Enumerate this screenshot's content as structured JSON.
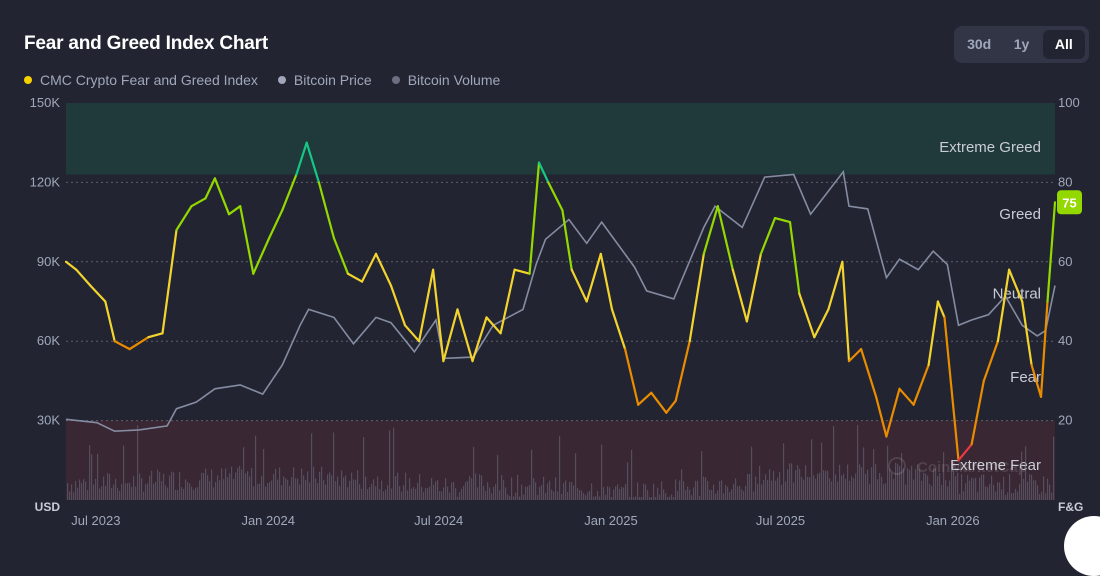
{
  "header": {
    "title": "Fear and Greed Index Chart",
    "ranges": [
      {
        "label": "30d",
        "active": false
      },
      {
        "label": "1y",
        "active": false
      },
      {
        "label": "All",
        "active": true
      }
    ]
  },
  "legend": [
    {
      "label": "CMC Crypto Fear and Greed Index",
      "color": "#f5d100"
    },
    {
      "label": "Bitcoin Price",
      "color": "#a1a7bb"
    },
    {
      "label": "Bitcoin Volume",
      "color": "#6b6f80"
    }
  ],
  "watermark": "CoinMarketCap",
  "chart_data": {
    "type": "line",
    "x_axis": {
      "type": "date",
      "range": [
        "2023-06-29",
        "2026-05-20"
      ],
      "ticks": [
        "Jul 2023",
        "Jan 2024",
        "Jul 2024",
        "Jan 2025",
        "Jul 2025",
        "Jan 2026"
      ]
    },
    "y_left": {
      "label": "USD",
      "range": [
        0,
        150000
      ],
      "ticks": [
        "30K",
        "60K",
        "90K",
        "120K",
        "150K"
      ]
    },
    "y_right": {
      "label": "F&G",
      "range": [
        0,
        100
      ],
      "ticks": [
        "20",
        "40",
        "60",
        "80",
        "100"
      ]
    },
    "zones": [
      {
        "label": "Extreme Greed",
        "from": 82,
        "to": 100,
        "color": "#16c784"
      },
      {
        "label": "Greed",
        "from": 62,
        "to": 82
      },
      {
        "label": "Neutral",
        "from": 42,
        "to": 62
      },
      {
        "label": "Fear",
        "from": 20,
        "to": 42
      },
      {
        "label": "Extreme Fear",
        "from": 0,
        "to": 20,
        "color": "#ea3943"
      }
    ],
    "current_value": "75",
    "series": [
      {
        "name": "CMC Crypto Fear and Greed Index",
        "axis": "right",
        "color_scale": [
          "#ea3943",
          "#ea8c00",
          "#f3d42f",
          "#93d900",
          "#16c784"
        ],
        "points": [
          [
            "2023-06-29",
            60
          ],
          [
            "2023-07-10",
            58
          ],
          [
            "2023-07-25",
            54
          ],
          [
            "2023-08-10",
            50
          ],
          [
            "2023-08-20",
            40
          ],
          [
            "2023-09-05",
            38
          ],
          [
            "2023-09-25",
            41
          ],
          [
            "2023-10-10",
            42
          ],
          [
            "2023-10-25",
            68
          ],
          [
            "2023-11-10",
            74
          ],
          [
            "2023-11-25",
            76
          ],
          [
            "2023-12-05",
            81
          ],
          [
            "2023-12-20",
            72
          ],
          [
            "2024-01-01",
            74
          ],
          [
            "2024-01-15",
            57
          ],
          [
            "2024-02-01",
            66
          ],
          [
            "2024-02-15",
            73
          ],
          [
            "2024-03-01",
            82
          ],
          [
            "2024-03-12",
            90
          ],
          [
            "2024-03-25",
            80
          ],
          [
            "2024-04-10",
            66
          ],
          [
            "2024-04-25",
            57
          ],
          [
            "2024-05-10",
            55
          ],
          [
            "2024-05-25",
            62
          ],
          [
            "2024-06-10",
            54
          ],
          [
            "2024-06-25",
            44
          ],
          [
            "2024-07-10",
            40
          ],
          [
            "2024-07-25",
            58
          ],
          [
            "2024-08-05",
            35
          ],
          [
            "2024-08-20",
            48
          ],
          [
            "2024-09-05",
            35
          ],
          [
            "2024-09-20",
            46
          ],
          [
            "2024-10-05",
            42
          ],
          [
            "2024-10-20",
            58
          ],
          [
            "2024-11-05",
            57
          ],
          [
            "2024-11-15",
            85
          ],
          [
            "2024-11-25",
            80
          ],
          [
            "2024-12-10",
            73
          ],
          [
            "2024-12-20",
            58
          ],
          [
            "2025-01-05",
            50
          ],
          [
            "2025-01-20",
            62
          ],
          [
            "2025-02-01",
            48
          ],
          [
            "2025-02-15",
            38
          ],
          [
            "2025-03-01",
            24
          ],
          [
            "2025-03-15",
            27
          ],
          [
            "2025-03-31",
            22
          ],
          [
            "2025-04-10",
            25
          ],
          [
            "2025-04-25",
            40
          ],
          [
            "2025-05-10",
            62
          ],
          [
            "2025-05-25",
            74
          ],
          [
            "2025-06-10",
            58
          ],
          [
            "2025-06-25",
            45
          ],
          [
            "2025-07-10",
            62
          ],
          [
            "2025-07-25",
            71
          ],
          [
            "2025-08-10",
            70
          ],
          [
            "2025-08-20",
            52
          ],
          [
            "2025-09-05",
            41
          ],
          [
            "2025-09-20",
            48
          ],
          [
            "2025-10-05",
            60
          ],
          [
            "2025-10-12",
            35
          ],
          [
            "2025-10-25",
            38
          ],
          [
            "2025-11-10",
            26
          ],
          [
            "2025-11-21",
            16
          ],
          [
            "2025-12-05",
            28
          ],
          [
            "2025-12-20",
            24
          ],
          [
            "2026-01-05",
            34
          ],
          [
            "2026-01-15",
            50
          ],
          [
            "2026-01-22",
            46
          ],
          [
            "2026-02-06",
            10
          ],
          [
            "2026-02-20",
            14
          ],
          [
            "2026-03-05",
            30
          ],
          [
            "2026-03-20",
            40
          ],
          [
            "2026-04-01",
            58
          ],
          [
            "2026-04-15",
            50
          ],
          [
            "2026-04-25",
            34
          ],
          [
            "2026-05-05",
            26
          ],
          [
            "2026-05-12",
            50
          ],
          [
            "2026-05-20",
            75
          ]
        ]
      },
      {
        "name": "Bitcoin Price",
        "axis": "left",
        "color": "#858ca2",
        "points": [
          [
            "2023-06-29",
            30500
          ],
          [
            "2023-08-01",
            29200
          ],
          [
            "2023-08-20",
            26000
          ],
          [
            "2023-09-15",
            26500
          ],
          [
            "2023-10-15",
            28000
          ],
          [
            "2023-10-25",
            34500
          ],
          [
            "2023-11-15",
            37000
          ],
          [
            "2023-12-05",
            42000
          ],
          [
            "2024-01-01",
            43500
          ],
          [
            "2024-01-25",
            40000
          ],
          [
            "2024-02-15",
            51000
          ],
          [
            "2024-03-05",
            66000
          ],
          [
            "2024-03-14",
            72000
          ],
          [
            "2024-04-10",
            69000
          ],
          [
            "2024-05-01",
            59000
          ],
          [
            "2024-05-25",
            69000
          ],
          [
            "2024-06-10",
            67000
          ],
          [
            "2024-07-05",
            56000
          ],
          [
            "2024-07-28",
            68000
          ],
          [
            "2024-08-05",
            53500
          ],
          [
            "2024-09-06",
            54000
          ],
          [
            "2024-09-27",
            66000
          ],
          [
            "2024-10-29",
            72000
          ],
          [
            "2024-11-12",
            89000
          ],
          [
            "2024-11-22",
            98500
          ],
          [
            "2024-12-17",
            106000
          ],
          [
            "2025-01-05",
            97000
          ],
          [
            "2025-01-21",
            105000
          ],
          [
            "2025-02-25",
            88000
          ],
          [
            "2025-03-10",
            79000
          ],
          [
            "2025-04-08",
            76000
          ],
          [
            "2025-05-10",
            103000
          ],
          [
            "2025-05-22",
            111000
          ],
          [
            "2025-06-20",
            103000
          ],
          [
            "2025-07-14",
            122000
          ],
          [
            "2025-08-14",
            123000
          ],
          [
            "2025-09-01",
            108000
          ],
          [
            "2025-10-06",
            124000
          ],
          [
            "2025-10-12",
            111000
          ],
          [
            "2025-11-01",
            110000
          ],
          [
            "2025-11-21",
            84000
          ],
          [
            "2025-12-05",
            91000
          ],
          [
            "2025-12-25",
            87000
          ],
          [
            "2026-01-10",
            94000
          ],
          [
            "2026-01-25",
            89000
          ],
          [
            "2026-02-06",
            66000
          ],
          [
            "2026-02-20",
            68000
          ],
          [
            "2026-03-10",
            70000
          ],
          [
            "2026-03-28",
            77000
          ],
          [
            "2026-04-15",
            66000
          ],
          [
            "2026-05-01",
            62000
          ],
          [
            "2026-05-10",
            64000
          ],
          [
            "2026-05-20",
            81000
          ]
        ]
      },
      {
        "name": "Bitcoin Volume",
        "axis": "left",
        "color": "#4a4d5c"
      }
    ]
  }
}
